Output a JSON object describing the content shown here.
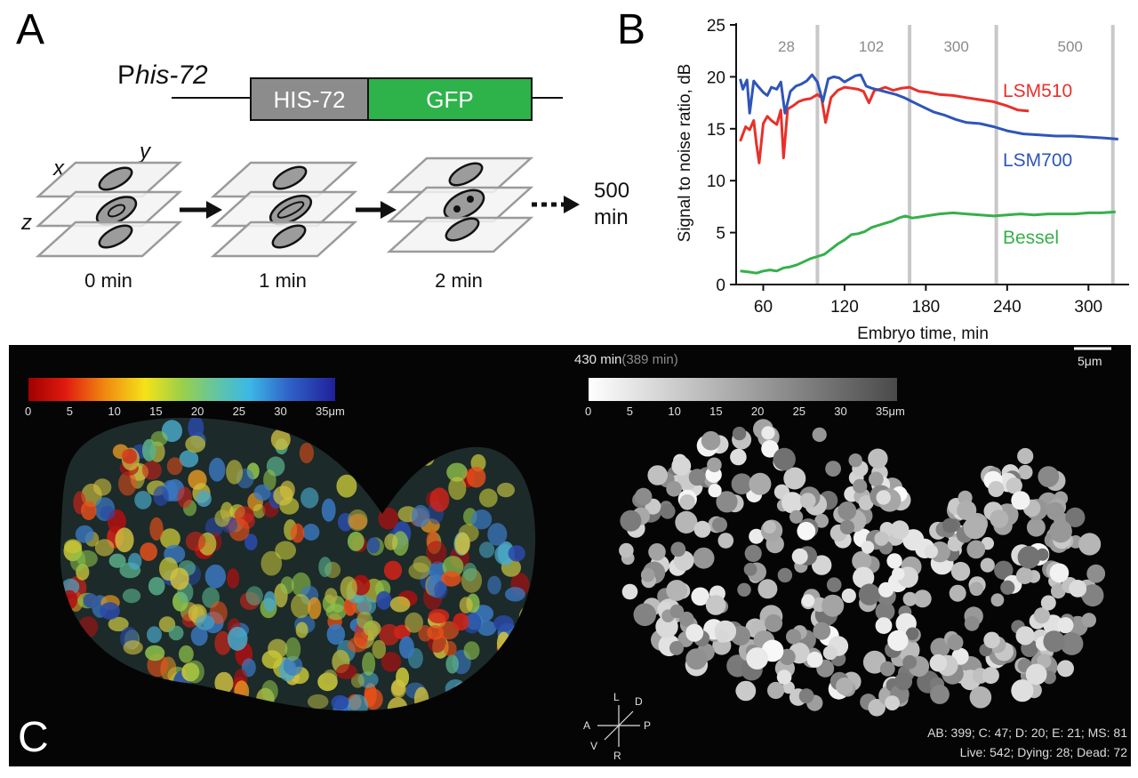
{
  "panelA": {
    "letter": "A",
    "promoter_prefix": "P",
    "promoter_italic": "his-72",
    "construct_left": "HIS-72",
    "construct_right": "GFP",
    "axis_x": "x",
    "axis_y": "y",
    "axis_z": "z",
    "times": [
      "0 min",
      "1 min",
      "2 min"
    ],
    "end_time_line1": "500",
    "end_time_line2": "min",
    "colors": {
      "his": "#8c8c8c",
      "gfp": "#2db34a"
    }
  },
  "panelB": {
    "letter": "B",
    "ann_28": "28",
    "ann_102": "102",
    "ann_300": "300",
    "ann_500": "500",
    "series_lsm510": "LSM510",
    "series_lsm700": "LSM700",
    "series_bessel": "Bessel"
  },
  "chart_data": {
    "type": "line",
    "title": "",
    "xlabel": "Embryo time, min",
    "ylabel": "Signal to noise ratio, dB",
    "xlim": [
      40,
      330
    ],
    "ylim": [
      0,
      25
    ],
    "xticks": [
      60,
      120,
      180,
      240,
      300
    ],
    "yticks": [
      0,
      5,
      10,
      15,
      20,
      25
    ],
    "grid": false,
    "vlines": [
      100,
      168,
      232,
      318
    ],
    "vline_labels": [
      "28",
      "102",
      "300",
      "500"
    ],
    "series": [
      {
        "name": "LSM510",
        "color": "#e8302a",
        "x": [
          43,
          47,
          50,
          53,
          55,
          57,
          60,
          63,
          66,
          70,
          73,
          75,
          78,
          82,
          86,
          90,
          95,
          100,
          103,
          106,
          110,
          115,
          120,
          125,
          130,
          134,
          138,
          142,
          146,
          150,
          156,
          162,
          168,
          175,
          182,
          190,
          200,
          210,
          220,
          230,
          240,
          248,
          256
        ],
        "y": [
          13.8,
          15.2,
          14.9,
          15.8,
          13.5,
          11.7,
          15.5,
          16.2,
          15.8,
          15.4,
          16.8,
          12.2,
          16.9,
          17.2,
          17.6,
          17.8,
          17.9,
          18.3,
          18.0,
          15.6,
          18.0,
          18.7,
          19.0,
          18.9,
          18.8,
          18.6,
          17.5,
          18.7,
          18.8,
          19.0,
          18.7,
          18.9,
          19.0,
          18.6,
          18.5,
          18.3,
          18.2,
          18.0,
          17.8,
          17.6,
          17.2,
          16.8,
          16.7
        ]
      },
      {
        "name": "LSM700",
        "color": "#2e55b8",
        "x": [
          43,
          45,
          48,
          50,
          53,
          56,
          60,
          63,
          66,
          70,
          73,
          76,
          80,
          84,
          88,
          92,
          96,
          100,
          104,
          108,
          112,
          116,
          120,
          124,
          128,
          132,
          136,
          140,
          146,
          152,
          158,
          164,
          170,
          178,
          186,
          194,
          202,
          210,
          220,
          230,
          240,
          252,
          264,
          276,
          288,
          300,
          312,
          322
        ],
        "y": [
          19.8,
          18.8,
          19.7,
          16.5,
          19.6,
          19.1,
          18.5,
          18.2,
          19.0,
          18.8,
          19.5,
          16.5,
          18.6,
          19.1,
          19.3,
          19.6,
          20.2,
          19.5,
          17.6,
          19.8,
          20.0,
          19.9,
          19.5,
          19.8,
          20.1,
          20.2,
          19.1,
          18.9,
          18.7,
          18.5,
          18.3,
          18.0,
          17.6,
          17.1,
          16.6,
          16.3,
          15.9,
          15.6,
          15.5,
          15.2,
          14.8,
          14.5,
          14.4,
          14.3,
          14.3,
          14.2,
          14.1,
          14.0
        ]
      },
      {
        "name": "Bessel",
        "color": "#35b04a",
        "x": [
          43,
          50,
          55,
          60,
          65,
          70,
          75,
          80,
          85,
          90,
          95,
          100,
          105,
          110,
          115,
          120,
          125,
          130,
          135,
          140,
          145,
          150,
          155,
          160,
          165,
          170,
          175,
          180,
          190,
          200,
          210,
          220,
          230,
          240,
          250,
          260,
          270,
          280,
          290,
          300,
          310,
          320
        ],
        "y": [
          1.3,
          1.2,
          1.1,
          1.3,
          1.4,
          1.3,
          1.6,
          1.7,
          1.9,
          2.2,
          2.5,
          2.7,
          2.9,
          3.4,
          3.9,
          4.3,
          4.8,
          4.9,
          5.1,
          5.5,
          5.7,
          5.9,
          6.1,
          6.4,
          6.6,
          6.4,
          6.5,
          6.6,
          6.8,
          6.9,
          6.8,
          6.7,
          6.6,
          6.7,
          6.8,
          6.7,
          6.8,
          6.8,
          6.8,
          6.9,
          6.9,
          7.0
        ]
      }
    ]
  },
  "panelC": {
    "letter": "C",
    "time_main": "430 min",
    "time_paren": "(389 min)",
    "scale_bar": "5μm",
    "cbar_ticks": [
      "0",
      "5",
      "10",
      "15",
      "20",
      "25",
      "30",
      "35μm"
    ],
    "compass": {
      "L": "L",
      "D": "D",
      "A": "A",
      "P": "P",
      "V": "V",
      "R": "R"
    },
    "info_line1": "AB: 399; C: 47; D: 20; E: 21; MS: 81",
    "info_line2": "Live: 542; Dying: 28; Dead: 72"
  }
}
